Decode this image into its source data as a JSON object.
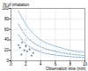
{
  "chart_data": {
    "type": "line",
    "x_label": "Observation time (min)",
    "y_label": "% of inhalation",
    "xlim": [
      0,
      10
    ],
    "xticks": [
      0,
      2,
      4,
      6,
      8,
      10
    ],
    "ylim": [
      0,
      100
    ],
    "yticks": [
      0,
      20,
      40,
      60,
      80,
      100
    ],
    "grid": true,
    "series": [
      {
        "type": "line",
        "color": "#7fb3d5",
        "line_style": "solid",
        "x": [
          1,
          2,
          3,
          4,
          6,
          8,
          10
        ],
        "values": [
          95,
          70,
          52,
          40,
          28,
          20,
          16
        ]
      },
      {
        "type": "line",
        "color": "#5b8fb9",
        "line_style": "dashed",
        "x": [
          1,
          2,
          3,
          4,
          6,
          8,
          10
        ],
        "values": [
          70,
          48,
          35,
          27,
          18,
          13,
          10
        ]
      },
      {
        "type": "line",
        "color": "#5b8fb9",
        "line_style": "dashed",
        "x": [
          1,
          2,
          3,
          4,
          6,
          8,
          10
        ],
        "values": [
          50,
          32,
          23,
          17,
          11,
          8,
          6
        ]
      },
      {
        "type": "scatter",
        "color": "#4a6a8a",
        "marker": "circle",
        "x": [
          1,
          1.2,
          1.5,
          1.8,
          2,
          2.2,
          2.5,
          3,
          1.4,
          2.8
        ],
        "values": [
          30,
          25,
          35,
          20,
          28,
          18,
          22,
          15,
          12,
          10
        ]
      }
    ]
  }
}
